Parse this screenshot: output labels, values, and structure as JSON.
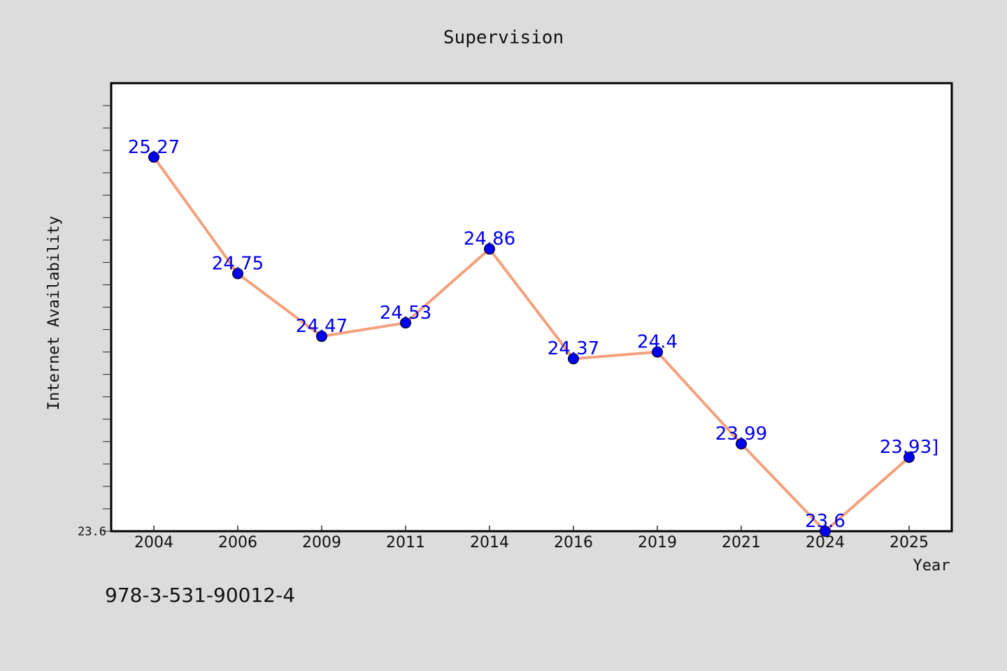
{
  "chart_data": {
    "type": "line",
    "title": "Supervision",
    "xlabel": "Year",
    "ylabel": "Internet Availability",
    "categories": [
      "2004",
      "2006",
      "2009",
      "2011",
      "2014",
      "2016",
      "2019",
      "2021",
      "2024",
      "2025"
    ],
    "series": [
      {
        "values": [
          25.27,
          24.75,
          24.47,
          24.53,
          24.86,
          24.37,
          24.4,
          23.99,
          23.6,
          23.93
        ]
      }
    ],
    "data_labels": [
      "25.27",
      "24.75",
      "24.47",
      "24.53",
      "24.86",
      "24.37",
      "24.4",
      "23.99",
      "23.6",
      "23.93]"
    ],
    "ytick_labels": [
      "23.6"
    ],
    "ylim": [
      23.6,
      25.6
    ],
    "grid": false,
    "legend": "none",
    "colors": {
      "line": "#f4a07c",
      "marker": "#0000ee",
      "label": "#0000ee",
      "background": "#dcdcdc",
      "plot_background": "#ffffff"
    }
  },
  "footnote": "978-3-531-90012-4"
}
